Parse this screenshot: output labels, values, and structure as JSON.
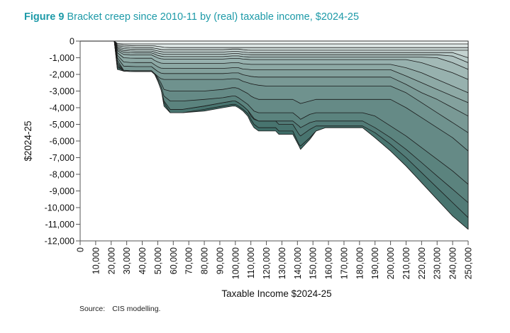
{
  "header": {
    "figure_label": "Figure 9",
    "figure_title": "Bracket creep since 2010-11 by (real) taxable income, $2024-25"
  },
  "footer": {
    "source_label": "Source:",
    "source_text": "CIS modelling."
  },
  "chart_data": {
    "type": "area",
    "xlabel": "Taxable Income $2024-25",
    "ylabel": "$2024-25",
    "xlim": [
      0,
      250000
    ],
    "ylim": [
      -12000,
      0
    ],
    "x_ticks": [
      "0",
      "10,000",
      "20,000",
      "30,000",
      "40,000",
      "50,000",
      "60,000",
      "70,000",
      "80,000",
      "90,000",
      "100,000",
      "110,000",
      "120,000",
      "130,000",
      "140,000",
      "150,000",
      "160,000",
      "170,000",
      "180,000",
      "190,000",
      "200,000",
      "210,000",
      "220,000",
      "230,000",
      "240,000",
      "250,000"
    ],
    "y_ticks": [
      "0",
      "-1,000",
      "-2,000",
      "-3,000",
      "-4,000",
      "-5,000",
      "-6,000",
      "-7,000",
      "-8,000",
      "-9,000",
      "-10,000",
      "-11,000",
      "-12,000"
    ],
    "grid": false,
    "legend": "none",
    "colors": {
      "deep": "#3f6d68",
      "light": "#eef3f2",
      "line": "#1a1a1a"
    },
    "x": [
      0,
      18000,
      21000,
      22000,
      24000,
      28000,
      32000,
      36000,
      40000,
      45000,
      46000,
      48000,
      50000,
      52000,
      54000,
      58000,
      66000,
      80000,
      92000,
      95000,
      98000,
      100000,
      102000,
      105000,
      108000,
      110000,
      112000,
      115000,
      120000,
      126000,
      128000,
      134000,
      136000,
      137000,
      141000,
      142000,
      148000,
      152000,
      158000,
      170000,
      176000,
      182000,
      190000,
      200000,
      210000,
      220000,
      230000,
      240000,
      250000
    ],
    "series": [
      {
        "values": [
          0,
          0,
          0,
          0,
          -150,
          -170,
          -170,
          -170,
          -170,
          -170,
          -170,
          -170,
          -170,
          -170,
          -170,
          -170,
          -170,
          -170,
          -170,
          -170,
          -170,
          -170,
          -170,
          -170,
          -170,
          -170,
          -170,
          -170,
          -170,
          -170,
          -170,
          -170,
          -170,
          -170,
          -170,
          -170,
          -170,
          -170,
          -170,
          -170,
          -170,
          -170,
          -170,
          -170,
          -170,
          -170,
          -170,
          -170,
          -170
        ]
      },
      {
        "values": [
          0,
          0,
          0,
          0,
          -210,
          -250,
          -270,
          -280,
          -280,
          -280,
          -280,
          -290,
          -320,
          -340,
          -380,
          -390,
          -390,
          -390,
          -390,
          -390,
          -390,
          -390,
          -390,
          -390,
          -390,
          -390,
          -390,
          -390,
          -390,
          -390,
          -390,
          -390,
          -390,
          -390,
          -390,
          -390,
          -390,
          -390,
          -390,
          -390,
          -390,
          -390,
          -390,
          -390,
          -390,
          -390,
          -390,
          -390,
          -390
        ]
      },
      {
        "values": [
          0,
          0,
          0,
          0,
          -280,
          -340,
          -380,
          -390,
          -390,
          -390,
          -390,
          -430,
          -460,
          -500,
          -520,
          -520,
          -520,
          -520,
          -520,
          -500,
          -480,
          -480,
          -480,
          -520,
          -540,
          -550,
          -550,
          -550,
          -550,
          -550,
          -550,
          -550,
          -550,
          -550,
          -550,
          -550,
          -550,
          -550,
          -550,
          -550,
          -550,
          -550,
          -550,
          -550,
          -550,
          -550,
          -550,
          -550,
          -550
        ]
      },
      {
        "values": [
          0,
          0,
          0,
          0,
          -350,
          -450,
          -480,
          -490,
          -490,
          -490,
          -490,
          -550,
          -590,
          -630,
          -660,
          -660,
          -660,
          -660,
          -660,
          -640,
          -620,
          -620,
          -620,
          -660,
          -680,
          -690,
          -690,
          -690,
          -690,
          -690,
          -690,
          -690,
          -690,
          -690,
          -690,
          -690,
          -690,
          -690,
          -690,
          -690,
          -690,
          -690,
          -690,
          -690,
          -690,
          -690,
          -690,
          -690,
          -1000
        ]
      },
      {
        "values": [
          0,
          0,
          0,
          0,
          -420,
          -560,
          -590,
          -600,
          -600,
          -600,
          -600,
          -660,
          -720,
          -760,
          -790,
          -790,
          -790,
          -790,
          -790,
          -770,
          -750,
          -750,
          -750,
          -790,
          -810,
          -820,
          -820,
          -820,
          -820,
          -820,
          -820,
          -820,
          -820,
          -820,
          -820,
          -820,
          -820,
          -820,
          -820,
          -820,
          -820,
          -820,
          -820,
          -820,
          -820,
          -820,
          -820,
          -900,
          -1300
        ]
      },
      {
        "values": [
          0,
          0,
          0,
          0,
          -500,
          -670,
          -700,
          -710,
          -710,
          -710,
          -710,
          -780,
          -860,
          -900,
          -930,
          -930,
          -930,
          -930,
          -930,
          -910,
          -890,
          -890,
          -890,
          -930,
          -950,
          -960,
          -960,
          -960,
          -960,
          -960,
          -960,
          -960,
          -960,
          -960,
          -960,
          -960,
          -960,
          -960,
          -960,
          -960,
          -960,
          -960,
          -960,
          -960,
          -960,
          -960,
          -1000,
          -1300,
          -1700
        ]
      },
      {
        "values": [
          0,
          0,
          0,
          0,
          -580,
          -800,
          -820,
          -830,
          -830,
          -830,
          -830,
          -920,
          -1010,
          -1060,
          -1080,
          -1080,
          -1080,
          -1080,
          -1080,
          -1060,
          -1040,
          -1040,
          -1040,
          -1080,
          -1100,
          -1110,
          -1110,
          -1110,
          -1110,
          -1110,
          -1110,
          -1110,
          -1110,
          -1110,
          -1110,
          -1110,
          -1110,
          -1110,
          -1110,
          -1110,
          -1110,
          -1110,
          -1110,
          -1110,
          -1110,
          -1300,
          -1600,
          -1900,
          -2300
        ]
      },
      {
        "values": [
          0,
          0,
          0,
          0,
          -700,
          -1000,
          -1020,
          -1030,
          -1030,
          -1030,
          -1030,
          -1160,
          -1250,
          -1320,
          -1340,
          -1340,
          -1340,
          -1340,
          -1340,
          -1320,
          -1300,
          -1300,
          -1300,
          -1360,
          -1380,
          -1400,
          -1400,
          -1400,
          -1400,
          -1400,
          -1400,
          -1400,
          -1400,
          -1400,
          -1400,
          -1400,
          -1400,
          -1400,
          -1400,
          -1400,
          -1400,
          -1400,
          -1400,
          -1400,
          -1600,
          -1900,
          -2300,
          -2700,
          -3100
        ]
      },
      {
        "values": [
          0,
          0,
          0,
          0,
          -850,
          -1250,
          -1280,
          -1290,
          -1290,
          -1290,
          -1290,
          -1420,
          -1540,
          -1620,
          -1640,
          -1640,
          -1640,
          -1640,
          -1640,
          -1620,
          -1600,
          -1600,
          -1600,
          -1680,
          -1700,
          -1720,
          -1720,
          -1720,
          -1720,
          -1720,
          -1720,
          -1720,
          -1720,
          -1720,
          -1720,
          -1720,
          -1720,
          -1720,
          -1720,
          -1720,
          -1720,
          -1720,
          -1720,
          -1720,
          -2100,
          -2500,
          -2900,
          -3300,
          -3700
        ]
      },
      {
        "values": [
          0,
          0,
          0,
          0,
          -1000,
          -1500,
          -1520,
          -1530,
          -1530,
          -1530,
          -1530,
          -1680,
          -1820,
          -1920,
          -1950,
          -1950,
          -1950,
          -1950,
          -1950,
          -1930,
          -1910,
          -1910,
          -1910,
          -2020,
          -2080,
          -2120,
          -2140,
          -2160,
          -2160,
          -2160,
          -2160,
          -2160,
          -2160,
          -2160,
          -2160,
          -2160,
          -2160,
          -2160,
          -2160,
          -2160,
          -2160,
          -2160,
          -2160,
          -2160,
          -2600,
          -3100,
          -3500,
          -4000,
          -4500
        ]
      },
      {
        "values": [
          0,
          0,
          0,
          0,
          -1150,
          -1750,
          -1770,
          -1780,
          -1780,
          -1780,
          -1780,
          -1950,
          -2120,
          -2250,
          -2300,
          -2300,
          -2300,
          -2300,
          -2300,
          -2280,
          -2260,
          -2260,
          -2280,
          -2420,
          -2500,
          -2560,
          -2600,
          -2650,
          -2700,
          -2700,
          -2700,
          -2700,
          -2700,
          -2700,
          -2700,
          -2700,
          -2700,
          -2700,
          -2700,
          -2700,
          -2700,
          -2700,
          -2700,
          -2700,
          -3100,
          -3700,
          -4300,
          -4900,
          -5500
        ]
      },
      {
        "values": [
          0,
          0,
          0,
          0,
          -1300,
          -1750,
          -1770,
          -1780,
          -1780,
          -1780,
          -1780,
          -1950,
          -2200,
          -2500,
          -2900,
          -3000,
          -3000,
          -3000,
          -2900,
          -2850,
          -2800,
          -2800,
          -2850,
          -3000,
          -3150,
          -3300,
          -3400,
          -3500,
          -3500,
          -3500,
          -3500,
          -3500,
          -3500,
          -3500,
          -3700,
          -3750,
          -3600,
          -3500,
          -3500,
          -3500,
          -3500,
          -3500,
          -3500,
          -3500,
          -4000,
          -4600,
          -5200,
          -5800,
          -6600
        ]
      },
      {
        "values": [
          0,
          0,
          0,
          0,
          -1400,
          -1800,
          -1820,
          -1830,
          -1830,
          -1830,
          -1830,
          -2000,
          -2300,
          -2700,
          -3300,
          -3600,
          -3600,
          -3500,
          -3400,
          -3350,
          -3300,
          -3300,
          -3400,
          -3600,
          -3800,
          -4000,
          -4200,
          -4300,
          -4300,
          -4300,
          -4300,
          -4300,
          -4300,
          -4300,
          -4600,
          -4700,
          -4400,
          -4300,
          -4300,
          -4300,
          -4300,
          -4300,
          -4500,
          -5100,
          -5700,
          -6400,
          -7100,
          -7800,
          -8600
        ]
      },
      {
        "values": [
          0,
          0,
          0,
          0,
          -1500,
          -1800,
          -1820,
          -1830,
          -1830,
          -1830,
          -1830,
          -2000,
          -2400,
          -2900,
          -3600,
          -4100,
          -4100,
          -3900,
          -3700,
          -3650,
          -3600,
          -3600,
          -3700,
          -3900,
          -4150,
          -4400,
          -4650,
          -4800,
          -4800,
          -4800,
          -4800,
          -4800,
          -4800,
          -4800,
          -5100,
          -5200,
          -4900,
          -4800,
          -4800,
          -4800,
          -4800,
          -4800,
          -5200,
          -5800,
          -6500,
          -7300,
          -8100,
          -8900,
          -9700
        ]
      },
      {
        "values": [
          0,
          0,
          0,
          0,
          -1600,
          -1700,
          -1700,
          -1700,
          -1700,
          -1700,
          -1700,
          -1750,
          -2000,
          -2600,
          -3500,
          -4100,
          -4100,
          -3900,
          -3700,
          -3650,
          -3600,
          -3600,
          -3700,
          -3900,
          -4150,
          -4500,
          -4700,
          -4800,
          -4800,
          -4800,
          -5000,
          -5000,
          -5000,
          -5000,
          -5600,
          -5700,
          -5300,
          -5100,
          -5100,
          -5100,
          -5100,
          -5100,
          -5500,
          -6200,
          -7000,
          -7900,
          -8800,
          -9700,
          -10600
        ]
      },
      {
        "values": [
          0,
          0,
          0,
          0,
          -1700,
          -1800,
          -1800,
          -1800,
          -1800,
          -1800,
          -1800,
          -1850,
          -2100,
          -2700,
          -3700,
          -4300,
          -4300,
          -4100,
          -3900,
          -3850,
          -3800,
          -3800,
          -3900,
          -4100,
          -4350,
          -4700,
          -5000,
          -5200,
          -5200,
          -5200,
          -5400,
          -5400,
          -5400,
          -5400,
          -6200,
          -6300,
          -5800,
          -5400,
          -5200,
          -5200,
          -5200,
          -5200,
          -5800,
          -6600,
          -7500,
          -8500,
          -9500,
          -10500,
          -11300
        ]
      },
      {
        "values": [
          0,
          0,
          0,
          0,
          -1700,
          -1800,
          -1800,
          -1800,
          -1800,
          -1800,
          -1800,
          -1850,
          -2100,
          -2800,
          -3900,
          -4300,
          -4300,
          -4200,
          -4000,
          -3950,
          -3900,
          -3900,
          -4000,
          -4200,
          -4500,
          -4900,
          -5200,
          -5400,
          -5400,
          -5400,
          -5600,
          -5600,
          -5600,
          -5600,
          -6300,
          -6500,
          -5900,
          -5400,
          -5200,
          -5200,
          -5200,
          -5200,
          -5800,
          -6600,
          -7500,
          -8500,
          -9500,
          -10500,
          -11300
        ]
      }
    ]
  }
}
